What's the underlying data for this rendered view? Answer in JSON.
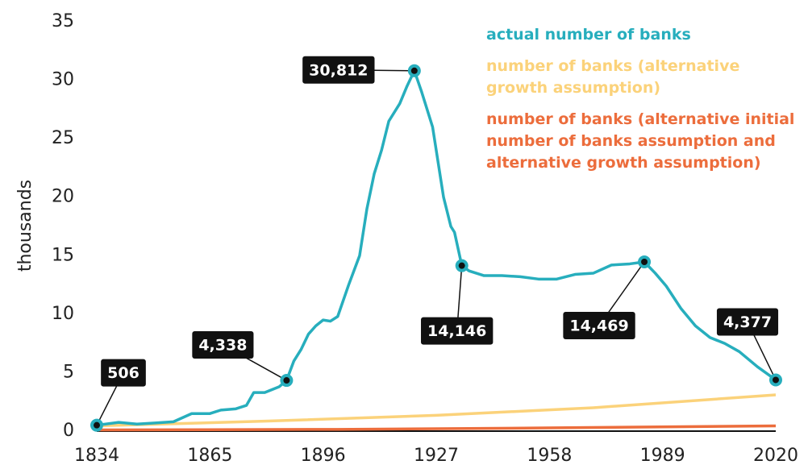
{
  "chart_data": {
    "type": "line",
    "y_label": "thousands",
    "xlim": [
      1834,
      2020
    ],
    "xticks": [
      1834,
      1865,
      1896,
      1927,
      1958,
      1989,
      2020
    ],
    "ylim": [
      0,
      35
    ],
    "yticks": [
      0,
      5,
      10,
      15,
      20,
      25,
      30,
      35
    ],
    "series": [
      {
        "name": "actual number of banks",
        "color": "#27aebd",
        "x": [
          1834,
          1840,
          1845,
          1850,
          1855,
          1860,
          1865,
          1868,
          1872,
          1875,
          1877,
          1880,
          1884,
          1886,
          1888,
          1890,
          1892,
          1894,
          1896,
          1898,
          1900,
          1903,
          1906,
          1908,
          1910,
          1912,
          1914,
          1917,
          1919,
          1921,
          1923,
          1926,
          1929,
          1931,
          1932,
          1934,
          1936,
          1940,
          1945,
          1950,
          1955,
          1960,
          1965,
          1970,
          1975,
          1980,
          1984,
          1987,
          1990,
          1994,
          1998,
          2002,
          2006,
          2010,
          2015,
          2020
        ],
        "values": [
          0.506,
          0.75,
          0.6,
          0.7,
          0.8,
          1.5,
          1.5,
          1.8,
          1.9,
          2.2,
          3.3,
          3.3,
          3.8,
          4.338,
          6.0,
          7.0,
          8.3,
          9.0,
          9.5,
          9.4,
          9.8,
          12.5,
          15.0,
          19.0,
          22.0,
          24.0,
          26.5,
          28.0,
          29.5,
          30.812,
          29.0,
          26.0,
          20.0,
          17.5,
          17.0,
          14.146,
          13.7,
          13.3,
          13.3,
          13.2,
          13.0,
          13.0,
          13.4,
          13.5,
          14.2,
          14.3,
          14.469,
          13.5,
          12.4,
          10.5,
          9.0,
          8.0,
          7.5,
          6.8,
          5.5,
          4.377
        ]
      },
      {
        "name": "number of banks (alternative growth assumption)",
        "color": "#fbd27a",
        "x": [
          1834,
          1880,
          1927,
          1970,
          2020
        ],
        "values": [
          0.45,
          0.85,
          1.35,
          2.0,
          3.1
        ]
      },
      {
        "name": "number of banks (alternative initial number of banks assumption and alternative growth assumption)",
        "color": "#ec6d3c",
        "x": [
          1834,
          1900,
          1960,
          2020
        ],
        "values": [
          0.1,
          0.15,
          0.28,
          0.45
        ]
      }
    ],
    "annotations": [
      {
        "x": 1834,
        "value": 0.506,
        "label": "506"
      },
      {
        "x": 1886,
        "value": 4.338,
        "label": "4,338"
      },
      {
        "x": 1921,
        "value": 30.812,
        "label": "30,812"
      },
      {
        "x": 1934,
        "value": 14.146,
        "label": "14,146"
      },
      {
        "x": 1984,
        "value": 14.469,
        "label": "14,469"
      },
      {
        "x": 2020,
        "value": 4.377,
        "label": "4,377"
      }
    ]
  }
}
